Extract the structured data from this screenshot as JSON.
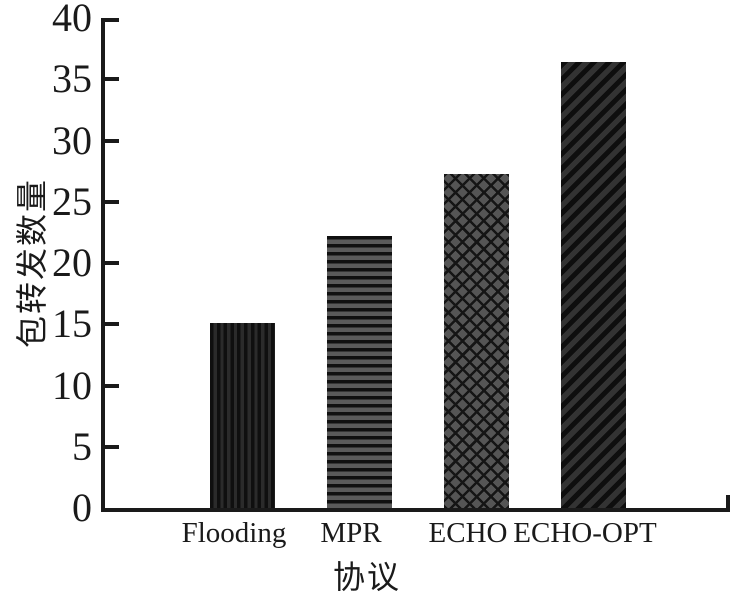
{
  "chart_data": {
    "type": "bar",
    "title": "",
    "categories": [
      "Flooding",
      "MPR",
      "ECHO",
      "ECHO-OPT"
    ],
    "values": [
      15.1,
      22.2,
      27.3,
      36.4
    ],
    "xlabel": "协议",
    "ylabel": "包转发数量",
    "ylim": [
      0,
      40
    ],
    "yticks": [
      0,
      5,
      10,
      15,
      20,
      25,
      30,
      35,
      40
    ],
    "grid": false,
    "legend": "none",
    "bar_patterns": [
      "vertical-stripes",
      "horizontal-stripes",
      "diamond-crosshatch",
      "diagonal-stripes"
    ],
    "bar_base_colors": [
      "#1c1c1c",
      "#585858",
      "#555555",
      "#2e2e2e"
    ],
    "hatch_color": "#101010",
    "axis_color": "#1a1a1a",
    "text_color": "#1a1a1a",
    "background": "#ffffff"
  }
}
